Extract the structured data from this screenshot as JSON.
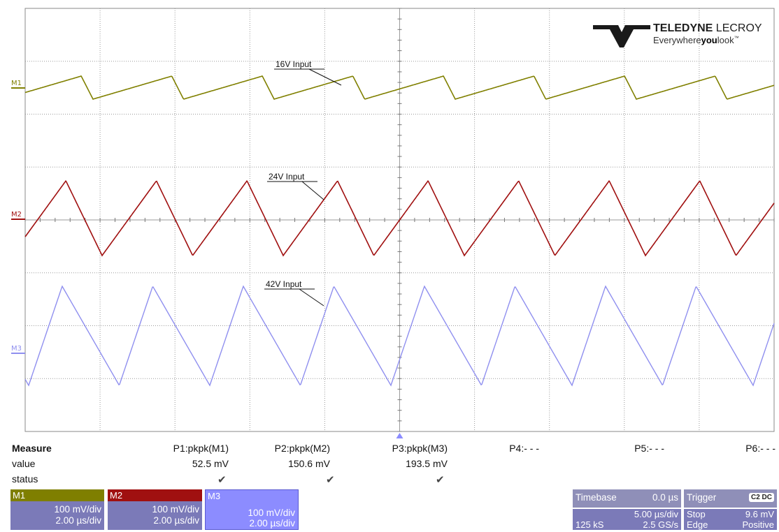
{
  "logo": {
    "brand": "TELEDYNE",
    "brand2": "LECROY",
    "tagline_a": "Everywhere",
    "tagline_b": "you",
    "tagline_c": "look",
    "tm": "™"
  },
  "traces": [
    {
      "id": "M1",
      "label": "M1",
      "annotation": "16V Input",
      "color": "#808000"
    },
    {
      "id": "M2",
      "label": "M2",
      "annotation": "24V Input",
      "color": "#a01010"
    },
    {
      "id": "M3",
      "label": "M3",
      "annotation": "42V Input",
      "color": "#8f8fef"
    }
  ],
  "measure": {
    "title": "Measure",
    "row_value": "value",
    "row_status": "status",
    "params": [
      {
        "name": "P1:pkpk(M1)",
        "value": "52.5 mV",
        "status": "✔"
      },
      {
        "name": "P2:pkpk(M2)",
        "value": "150.6 mV",
        "status": "✔"
      },
      {
        "name": "P3:pkpk(M3)",
        "value": "193.5 mV",
        "status": "✔"
      },
      {
        "name": "P4:- - -",
        "value": "",
        "status": ""
      },
      {
        "name": "P5:- - -",
        "value": "",
        "status": ""
      },
      {
        "name": "P6:- - -",
        "value": "",
        "status": ""
      }
    ]
  },
  "channels": [
    {
      "name": "M1",
      "vdiv": "100 mV/div",
      "tdiv": "2.00 µs/div",
      "color": "#7f7f00"
    },
    {
      "name": "M2",
      "vdiv": "100 mV/div",
      "tdiv": "2.00 µs/div",
      "color": "#a01010"
    },
    {
      "name": "M3",
      "vdiv": "100 mV/div",
      "tdiv": "2.00 µs/div",
      "color": "#8c8cff"
    }
  ],
  "timebase": {
    "label": "Timebase",
    "delay": "0.0 µs",
    "tdiv": "5.00 µs/div",
    "samples": "125 kS",
    "rate": "2.5 GS/s"
  },
  "trigger": {
    "label": "Trigger",
    "badge": "C2 DC",
    "mode": "Stop",
    "level": "9.6 mV",
    "type": "Edge",
    "slope": "Positive"
  }
}
